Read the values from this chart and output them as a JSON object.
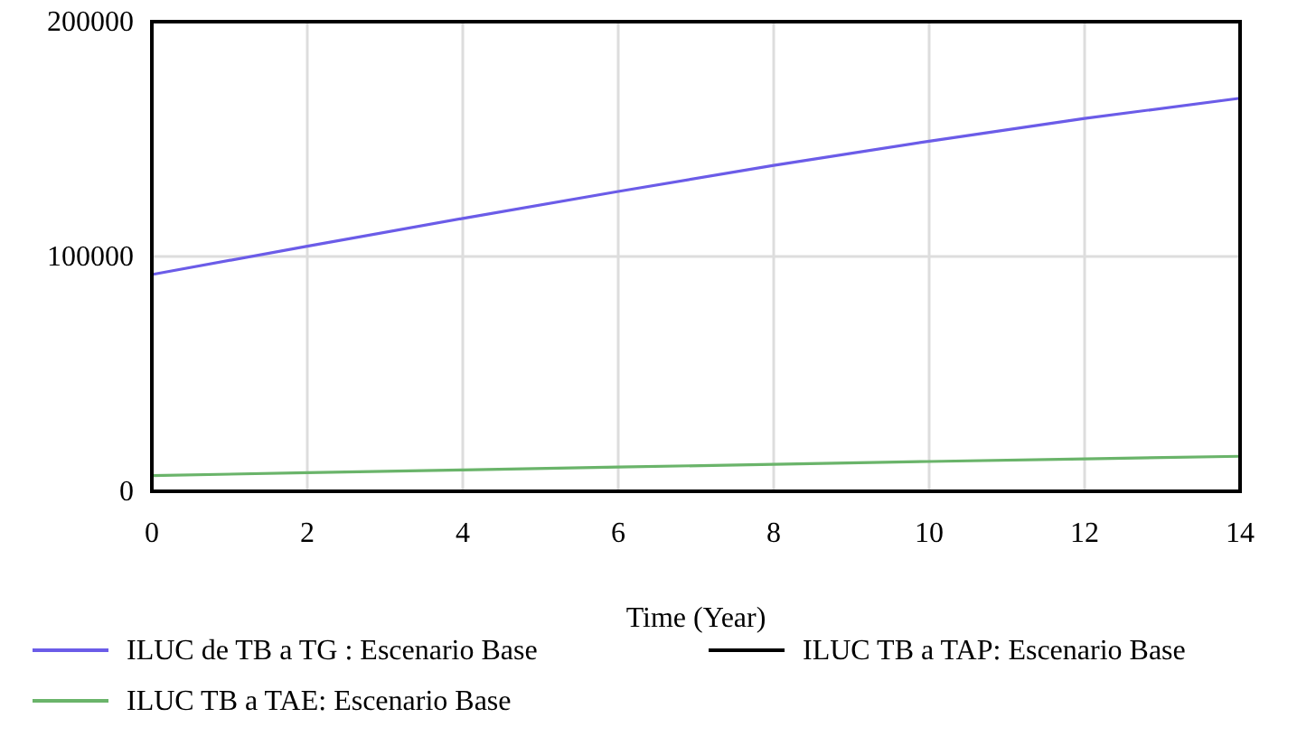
{
  "chart_data": {
    "type": "line",
    "xlabel": "Time (Year)",
    "x": [
      0,
      2,
      4,
      6,
      8,
      10,
      12,
      14
    ],
    "series": [
      {
        "name": "ILUC de TB a TG : Escenario Base",
        "color": "#6b5ce8",
        "values": [
          92300,
          104400,
          116200,
          127700,
          138800,
          149100,
          158800,
          167400
        ]
      },
      {
        "name": "ILUC TB a TAP: Escenario Base",
        "color": "#000000",
        "values": [
          0,
          0,
          0,
          0,
          0,
          0,
          0,
          0
        ]
      },
      {
        "name": "ILUC TB a TAE: Escenario Base",
        "color": "#6ab46a",
        "values": [
          6700,
          7900,
          9100,
          10300,
          11500,
          12700,
          13800,
          14900
        ]
      }
    ],
    "xlim": [
      0,
      14
    ],
    "xticks": [
      0,
      2,
      4,
      6,
      8,
      10,
      12,
      14
    ],
    "ylim": [
      0,
      200000
    ],
    "yticks": [
      0,
      100000,
      200000
    ],
    "grid": true,
    "legend": "bottom",
    "marker": "none",
    "line_style": "solid"
  }
}
